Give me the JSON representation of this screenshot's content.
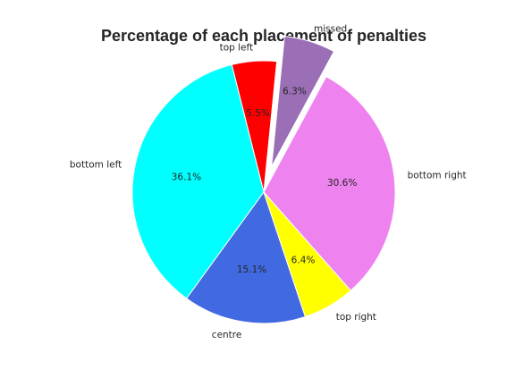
{
  "chart_data": {
    "type": "pie",
    "title": "Percentage of each placement of penalties",
    "slices": [
      {
        "label": "top left",
        "value": 5.5,
        "pct_label": "5.5%",
        "color": "#ff0000",
        "explode": false
      },
      {
        "label": "bottom left",
        "value": 36.1,
        "pct_label": "36.1%",
        "color": "#00ffff",
        "explode": false
      },
      {
        "label": "centre",
        "value": 15.1,
        "pct_label": "15.1%",
        "color": "#4169e1",
        "explode": false
      },
      {
        "label": "top right",
        "value": 6.4,
        "pct_label": "6.4%",
        "color": "#ffff00",
        "explode": false
      },
      {
        "label": "bottom right",
        "value": 30.6,
        "pct_label": "30.6%",
        "color": "#ee82ee",
        "explode": false
      },
      {
        "label": "missed",
        "value": 6.3,
        "pct_label": "6.3%",
        "color": "#9a6fb5",
        "explode": true
      }
    ]
  }
}
